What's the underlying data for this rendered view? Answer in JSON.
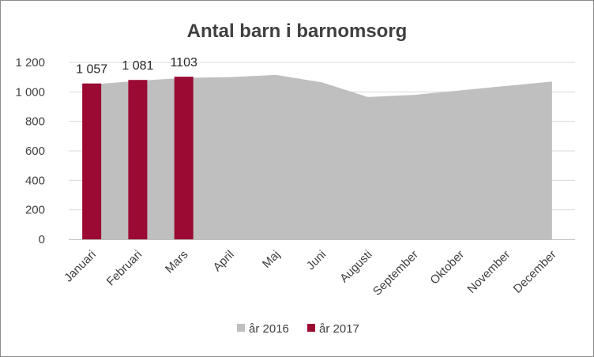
{
  "chart_data": {
    "type": "bar",
    "title": "Antal barn i barnomsorg",
    "xlabel": "",
    "ylabel": "",
    "categories": [
      "Januari",
      "Februari",
      "Mars",
      "April",
      "Maj",
      "Juni",
      "Augusti",
      "September",
      "Oktober",
      "November",
      "December"
    ],
    "ylim": [
      0,
      1200
    ],
    "yticks": [
      0,
      200,
      400,
      600,
      800,
      1000,
      1200
    ],
    "ytick_labels": [
      "0",
      "200",
      "400",
      "600",
      "800",
      "1 000",
      "1 200"
    ],
    "grid": true,
    "legend": "bottom",
    "series": [
      {
        "name": "år 2016",
        "type": "area",
        "color": "#bfbfbf",
        "values": [
          1050,
          1075,
          1095,
          1100,
          1115,
          1065,
          965,
          980,
          1010,
          1040,
          1070
        ]
      },
      {
        "name": "år 2017",
        "type": "bar",
        "color": "#9a0a32",
        "values": [
          1057,
          1081,
          1103,
          null,
          null,
          null,
          null,
          null,
          null,
          null,
          null
        ],
        "data_labels": [
          "1 057",
          "1 081",
          "1103"
        ]
      }
    ]
  }
}
